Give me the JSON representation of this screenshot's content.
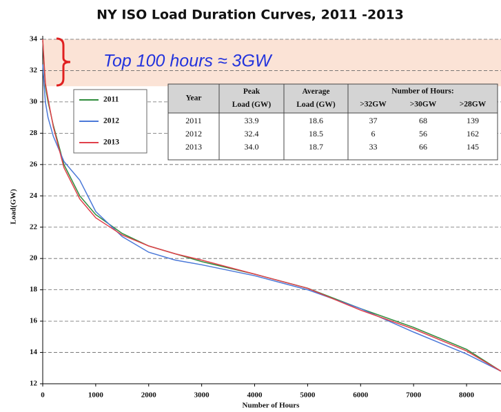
{
  "chart_data": {
    "type": "line",
    "title": "NY ISO Load Duration Curves, 2011 -2013",
    "x_label": "Number of Hours",
    "y_label": "Load(GW)",
    "annotation": "Top 100 hours ≈ 3GW",
    "band": [
      31,
      34
    ],
    "band_color": "#fbe3d6",
    "x": [
      0,
      50,
      100,
      200,
      400,
      700,
      1000,
      1500,
      2000,
      2500,
      3000,
      4000,
      5000,
      6000,
      7000,
      8000,
      8650
    ],
    "series": [
      {
        "name": "2011",
        "color": "#2e8b3a",
        "values": [
          33.9,
          31,
          30,
          28.5,
          26,
          24,
          22.8,
          21.6,
          20.8,
          20.3,
          19.8,
          19,
          18.1,
          16.8,
          15.6,
          14.2,
          12.8
        ]
      },
      {
        "name": "2012",
        "color": "#4a78d8",
        "values": [
          32.4,
          30,
          29,
          27.8,
          26.2,
          25,
          23,
          21.4,
          20.4,
          19.9,
          19.6,
          18.9,
          18,
          16.8,
          15.3,
          13.9,
          12.8
        ]
      },
      {
        "name": "2013",
        "color": "#e0404a",
        "values": [
          34.0,
          31.2,
          30.2,
          28.4,
          25.8,
          23.8,
          22.6,
          21.5,
          20.8,
          20.3,
          19.9,
          19,
          18.1,
          16.7,
          15.5,
          14.1,
          12.8
        ]
      }
    ],
    "xlim": [
      0,
      8650
    ],
    "xticks": [
      0,
      1000,
      2000,
      3000,
      4000,
      5000,
      6000,
      7000,
      8000
    ],
    "ylim": [
      12,
      34
    ],
    "yticks": [
      12,
      14,
      16,
      18,
      20,
      22,
      24,
      26,
      28,
      30,
      32,
      34
    ],
    "grid": true,
    "table": {
      "header": [
        "Year",
        "Peak Load (GW)",
        "Average Load (GW)",
        "Number of Hours:"
      ],
      "subheader": [
        ">32GW",
        ">30GW",
        ">28GW"
      ],
      "rows": [
        [
          "2011",
          "33.9",
          "18.6",
          "37",
          "68",
          "139"
        ],
        [
          "2012",
          "32.4",
          "18.5",
          "6",
          "56",
          "162"
        ],
        [
          "2013",
          "34.0",
          "18.7",
          "33",
          "66",
          "145"
        ]
      ]
    }
  }
}
